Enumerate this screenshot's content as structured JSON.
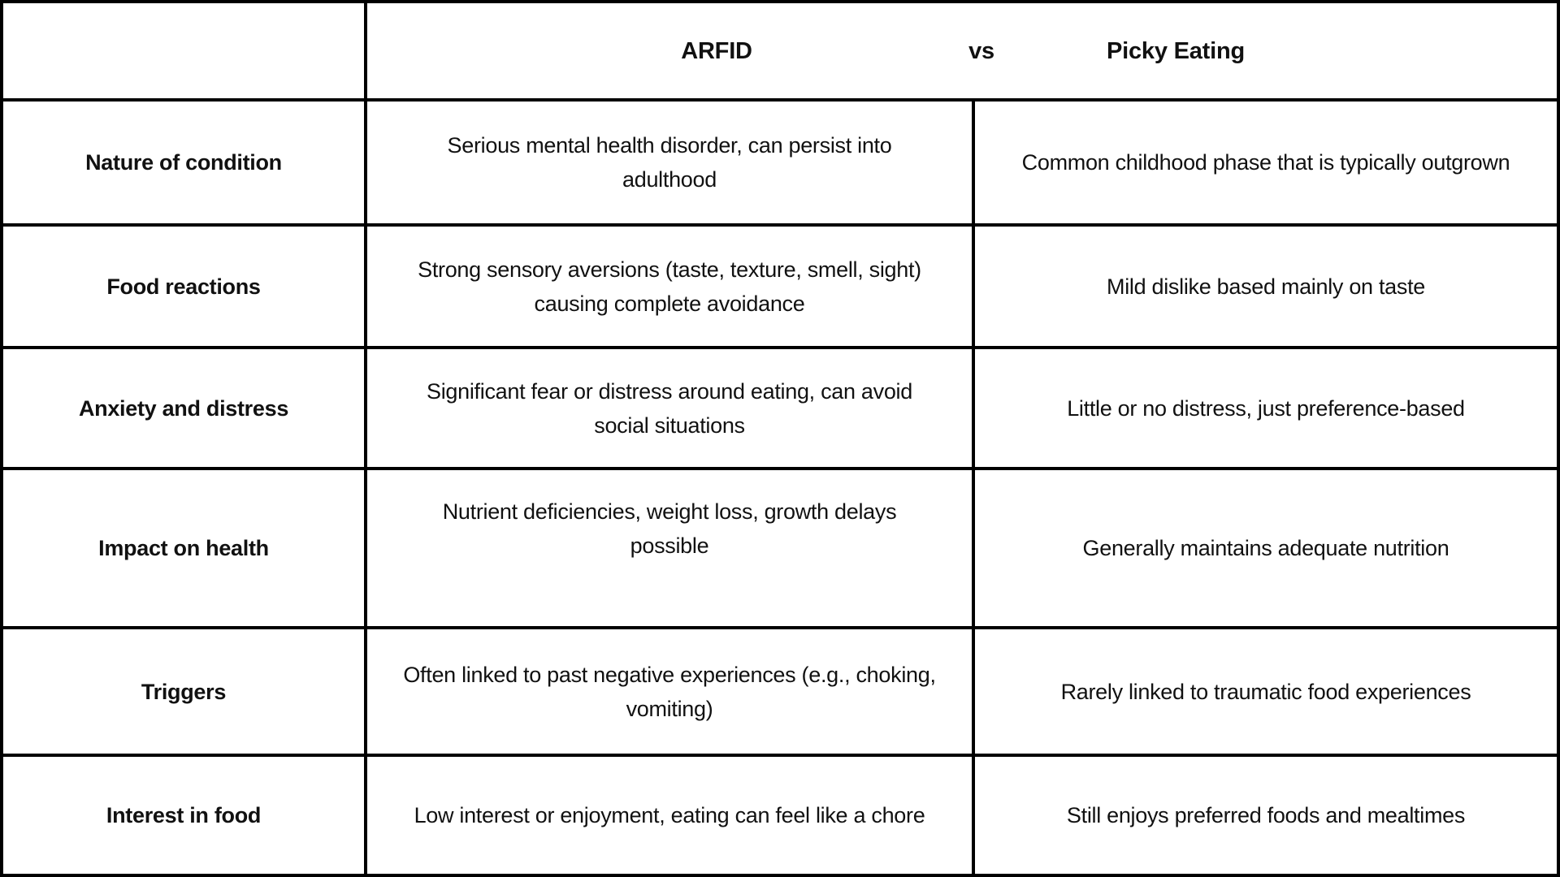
{
  "chart_data": {
    "type": "table",
    "title": "ARFID vs Picky Eating",
    "header": {
      "left": "ARFID",
      "versus": "vs",
      "right": "Picky Eating"
    },
    "columns": [
      "",
      "ARFID",
      "Picky Eating"
    ],
    "rows": [
      {
        "label": "Nature of condition",
        "arfid": [
          "Serious mental health disorder, can persist into",
          "adulthood"
        ],
        "picky": "Common childhood phase that is typically outgrown"
      },
      {
        "label": "Food reactions",
        "arfid": [
          "Strong sensory aversions (taste, texture, smell, sight)",
          "causing complete avoidance"
        ],
        "picky": "Mild dislike based mainly on taste"
      },
      {
        "label": "Anxiety and distress",
        "arfid": [
          "Significant fear or distress around eating, can avoid",
          "social situations"
        ],
        "picky": "Little or no distress, just preference-based"
      },
      {
        "label": "Impact on health",
        "arfid": [
          "Nutrient deficiencies, weight loss, growth delays",
          "possible"
        ],
        "picky": "Generally maintains adequate nutrition"
      },
      {
        "label": "Triggers",
        "arfid": [
          "Often linked to past negative experiences (e.g., choking,",
          "vomiting)"
        ],
        "picky": "Rarely linked to traumatic food experiences"
      },
      {
        "label": "Interest in food",
        "arfid": "Low interest or enjoyment, eating can feel like a chore",
        "picky": "Still enjoys preferred foods and mealtimes"
      }
    ]
  },
  "colors": {
    "border": "#000000",
    "background": "#ffffff",
    "text": "#111111"
  }
}
